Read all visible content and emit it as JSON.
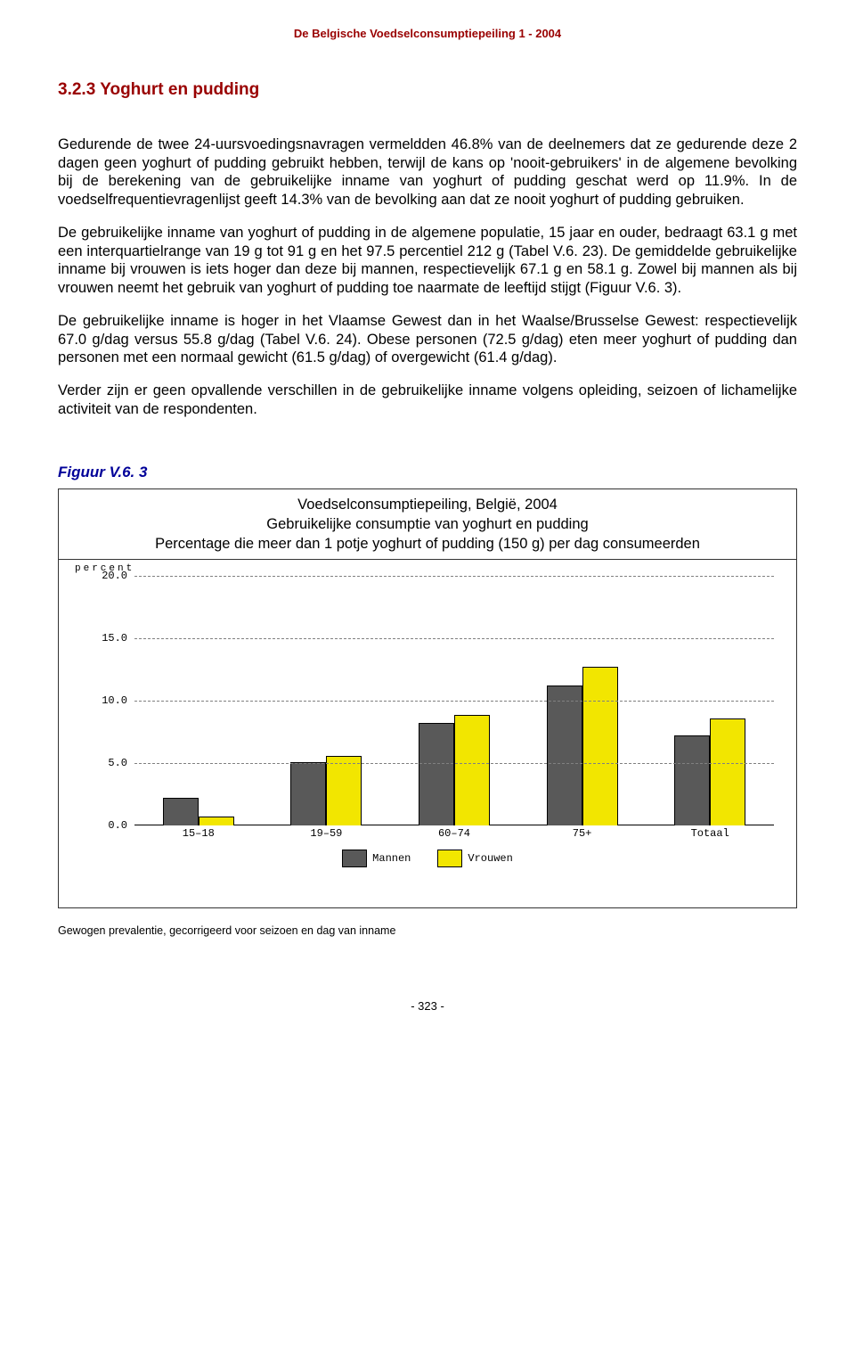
{
  "header": "De Belgische Voedselconsumptiepeiling 1 - 2004",
  "section_title": "3.2.3  Yoghurt en pudding",
  "paragraphs": {
    "p1": "Gedurende de twee 24-uursvoedingsnavragen vermeldden 46.8% van de deelnemers dat ze gedurende deze 2 dagen geen yoghurt of pudding gebruikt hebben, terwijl de kans op 'nooit-gebruikers' in de algemene bevolking bij de berekening van de gebruikelijke inname van yoghurt of pudding geschat werd op 11.9%. In de voedselfrequentievragenlijst geeft 14.3% van de bevolking aan dat ze nooit yoghurt of pudding gebruiken.",
    "p2": "De gebruikelijke inname van yoghurt of pudding in de algemene populatie, 15 jaar en ouder, bedraagt 63.1 g met een interquartielrange van 19 g tot 91 g en het 97.5 percentiel 212 g (Tabel V.6. 23). De gemiddelde gebruikelijke inname bij vrouwen is iets hoger dan deze bij mannen, respectievelijk 67.1 g en 58.1 g. Zowel bij mannen als bij vrouwen neemt het gebruik van yoghurt of pudding toe naarmate de leeftijd stijgt (Figuur V.6. 3).",
    "p3": "De gebruikelijke inname is hoger in het Vlaamse Gewest dan in het Waalse/Brusselse Gewest: respectievelijk 67.0 g/dag versus 55.8 g/dag (Tabel V.6. 24). Obese personen (72.5 g/dag) eten meer yoghurt of pudding dan personen met een normaal gewicht (61.5 g/dag) of overgewicht (61.4 g/dag).",
    "p4": "Verder zijn er geen opvallende verschillen in de gebruikelijke inname volgens opleiding, seizoen of lichamelijke activiteit van de respondenten."
  },
  "figure_label": "Figuur V.6. 3",
  "chart": {
    "title_line1": "Voedselconsumptiepeiling, België, 2004",
    "title_line2": "Gebruikelijke consumptie van yoghurt en pudding",
    "title_line3": "Percentage die meer dan 1 potje yoghurt of pudding (150 g) per dag consumeerden",
    "yaxis_label": "percent",
    "ylim_max": 20,
    "yticks": [
      "20.0",
      "15.0",
      "10.0",
      "5.0",
      "0.0"
    ],
    "categories": [
      "15–18",
      "19–59",
      "60–74",
      "75+",
      "Totaal"
    ],
    "legend": {
      "men": "Mannen",
      "women": "Vrouwen"
    },
    "series_men": [
      2.2,
      5.0,
      8.2,
      11.2,
      7.2
    ],
    "series_women": [
      0.7,
      5.5,
      8.8,
      12.7,
      8.5
    ],
    "color_men": "#595959",
    "color_women": "#f2e600",
    "grid_color": "#808080",
    "bg": "#ffffff"
  },
  "footnote": "Gewogen prevalentie, gecorrigeerd voor seizoen en dag van inname",
  "page_num": "- 323 -"
}
